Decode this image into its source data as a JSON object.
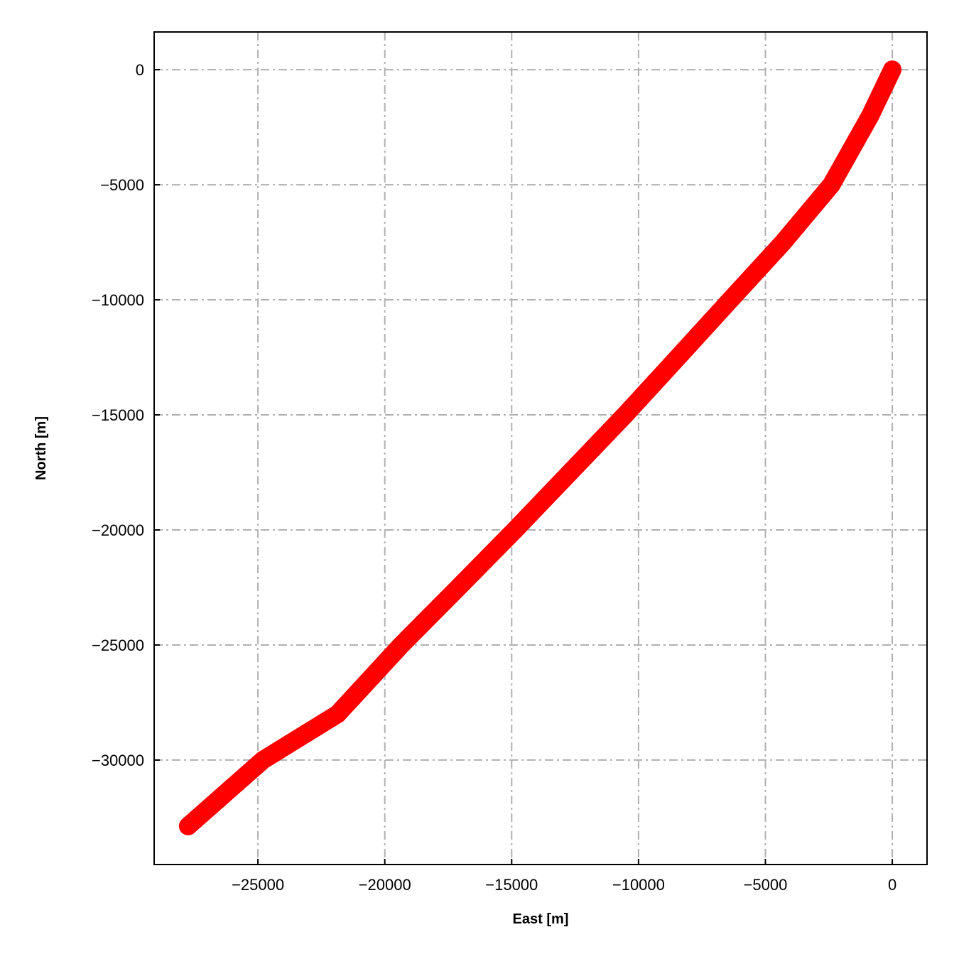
{
  "chart_data": {
    "type": "scatter",
    "title": "",
    "xlabel": "East [m]",
    "ylabel": "North [m]",
    "xlim": [
      -29090,
      1370
    ],
    "ylim": [
      -34540,
      1640
    ],
    "xticks": [
      -25000,
      -20000,
      -15000,
      -10000,
      -5000,
      0
    ],
    "yticks": [
      0,
      -5000,
      -10000,
      -15000,
      -20000,
      -25000,
      -30000
    ],
    "xtick_labels": [
      "−25000",
      "−20000",
      "−15000",
      "−10000",
      "−5000",
      "0"
    ],
    "ytick_labels": [
      "0",
      "−5000",
      "−10000",
      "−15000",
      "−20000",
      "−25000",
      "−30000"
    ],
    "grid": true,
    "grid_style": "dash-dot",
    "grid_color": "#b0b0b0",
    "marker_color": "#ff0000",
    "series": [
      {
        "x": [
          0,
          -870,
          -2400,
          -4300,
          -6380,
          -8450,
          -10530,
          -12700,
          -14870,
          -17100,
          -19350,
          -21860,
          -24800,
          -27750
        ],
        "y": [
          0,
          -2000,
          -5000,
          -7500,
          -10000,
          -12500,
          -15000,
          -17500,
          -20000,
          -22500,
          -25000,
          -28000,
          -30000,
          -32870
        ]
      }
    ]
  }
}
